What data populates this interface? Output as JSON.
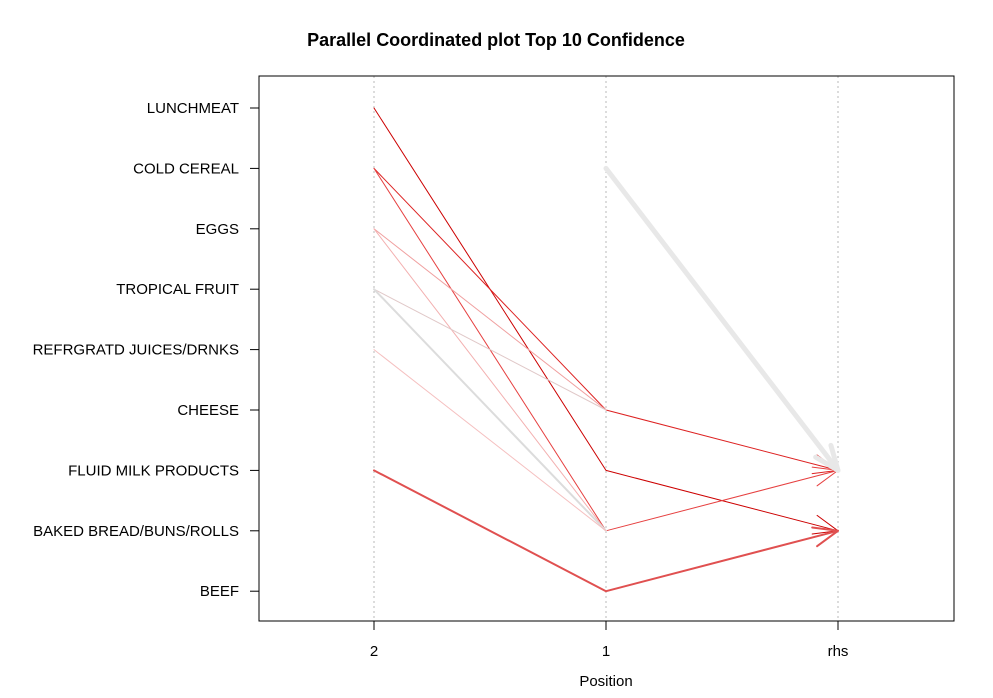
{
  "chart_data": {
    "type": "parallel-coordinates",
    "title": "Parallel Coordinated plot Top 10 Confidence",
    "xlabel": "Position",
    "axes": [
      "2",
      "1",
      "rhs"
    ],
    "items": [
      "LUNCHMEAT",
      "COLD CEREAL",
      "EGGS",
      "TROPICAL FRUIT",
      "REFRGRATD JUICES/DRNKS",
      "CHEESE",
      "FLUID MILK PRODUCTS",
      "BAKED BREAD/BUNS/ROLLS",
      "BEEF"
    ],
    "grid": true,
    "rules": [
      {
        "path": [
          "LUNCHMEAT",
          "FLUID MILK PRODUCTS",
          "BAKED BREAD/BUNS/ROLLS"
        ],
        "color": "#cc0000",
        "width": 1.0
      },
      {
        "path": [
          "COLD CEREAL",
          "CHEESE",
          "FLUID MILK PRODUCTS"
        ],
        "color": "#dd2222",
        "width": 1.0
      },
      {
        "path": [
          "COLD CEREAL",
          "BAKED BREAD/BUNS/ROLLS",
          "FLUID MILK PRODUCTS"
        ],
        "color": "#e64040",
        "width": 1.0
      },
      {
        "path": [
          "EGGS",
          "CHEESE"
        ],
        "color": "#f0a0a0",
        "width": 1.0
      },
      {
        "path": [
          "EGGS",
          "BAKED BREAD/BUNS/ROLLS"
        ],
        "color": "#f3b0b0",
        "width": 1.0
      },
      {
        "path": [
          "TROPICAL FRUIT",
          "CHEESE"
        ],
        "color": "#e0c8c8",
        "width": 1.0
      },
      {
        "path": [
          "TROPICAL FRUIT",
          "BAKED BREAD/BUNS/ROLLS"
        ],
        "color": "#dcdcdc",
        "width": 2.0
      },
      {
        "path": [
          "REFRGRATD JUICES/DRNKS",
          "BAKED BREAD/BUNS/ROLLS"
        ],
        "color": "#f5c0c0",
        "width": 1.0
      },
      {
        "path": [
          "FLUID MILK PRODUCTS",
          "BEEF",
          "BAKED BREAD/BUNS/ROLLS"
        ],
        "color": "#e05050",
        "width": 2.0
      },
      {
        "path": [
          null,
          "COLD CEREAL",
          "FLUID MILK PRODUCTS"
        ],
        "color": "#e8e8e8",
        "width": 5.0
      }
    ]
  }
}
